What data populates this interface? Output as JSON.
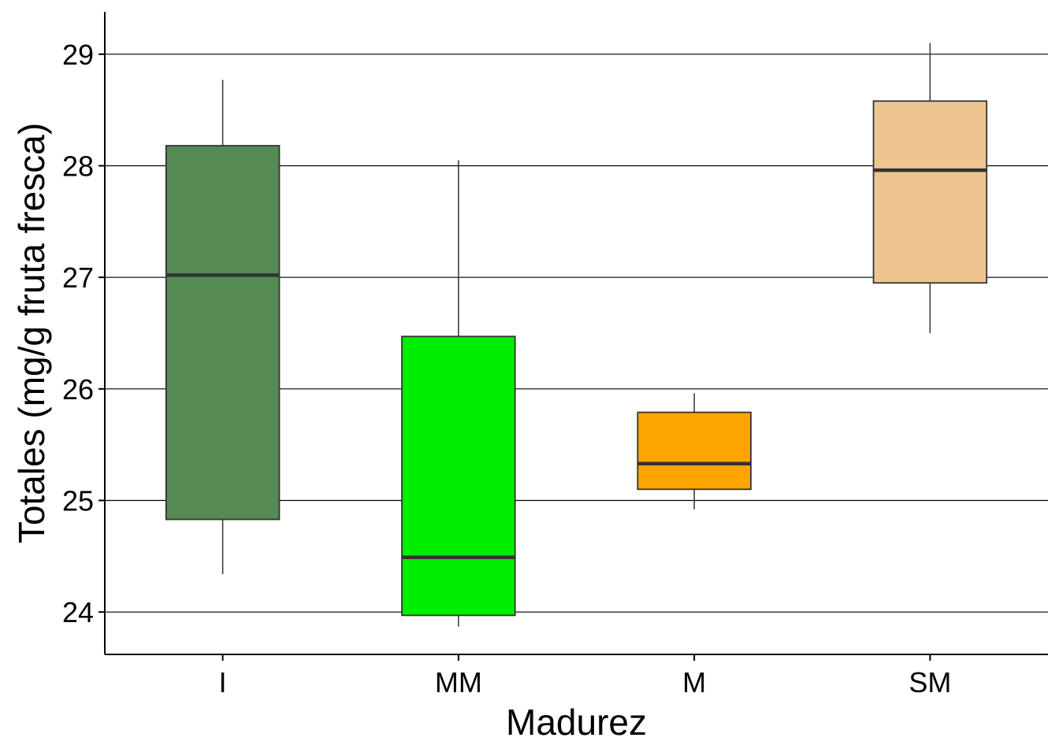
{
  "chart_data": {
    "type": "boxplot",
    "title": "",
    "xlabel": "Madurez",
    "ylabel": "Totales (mg/g fruta fresca)",
    "categories": [
      "I",
      "MM",
      "M",
      "SM"
    ],
    "ylim": [
      23.62,
      29.38
    ],
    "yticks": [
      24,
      25,
      26,
      27,
      28,
      29
    ],
    "grid": "horizontal",
    "legend": "none",
    "boxes": [
      {
        "category": "I",
        "min": 24.34,
        "q1": 24.83,
        "median": 27.02,
        "q3": 28.18,
        "max": 28.77,
        "color": "#548b54"
      },
      {
        "category": "MM",
        "min": 23.87,
        "q1": 23.97,
        "median": 24.49,
        "q3": 26.47,
        "max": 28.05,
        "color": "#00ee00"
      },
      {
        "category": "M",
        "min": 24.92,
        "q1": 25.1,
        "median": 25.33,
        "q3": 25.79,
        "max": 25.96,
        "color": "#ffa500"
      },
      {
        "category": "SM",
        "min": 26.5,
        "q1": 26.95,
        "median": 27.96,
        "q3": 28.58,
        "max": 29.1,
        "color": "#eec591"
      }
    ]
  }
}
